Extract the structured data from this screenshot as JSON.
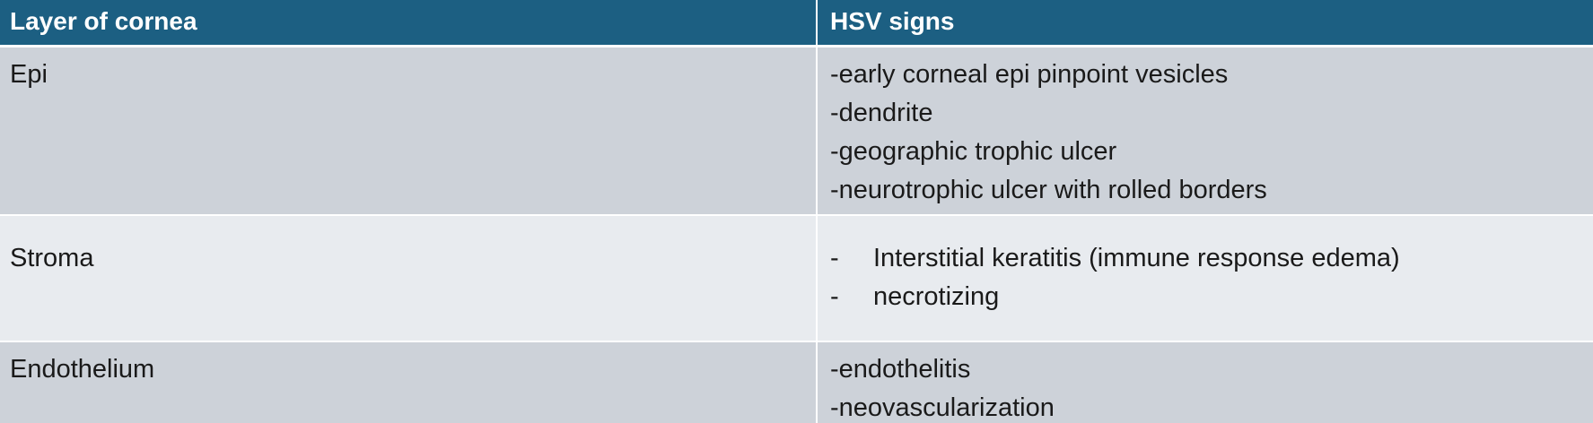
{
  "table": {
    "headers": [
      "Layer of cornea",
      "HSV signs"
    ],
    "rows": [
      {
        "layer": "Epi",
        "signs": [
          "-early corneal epi pinpoint vesicles",
          "-dendrite",
          "-geographic trophic ulcer",
          "-neurotrophic ulcer with rolled borders"
        ]
      },
      {
        "layer": "Stroma",
        "bullet": "-",
        "signs": [
          "Interstitial keratitis  (immune response edema)",
          "necrotizing"
        ]
      },
      {
        "layer": "Endothelium",
        "signs": [
          "-endothelitis",
          "-neovascularization"
        ]
      }
    ]
  },
  "colors": {
    "header_bg": "#1c5f82",
    "header_text": "#ffffff",
    "row_dark": "#cdd2d9",
    "row_light": "#e8ebef"
  }
}
